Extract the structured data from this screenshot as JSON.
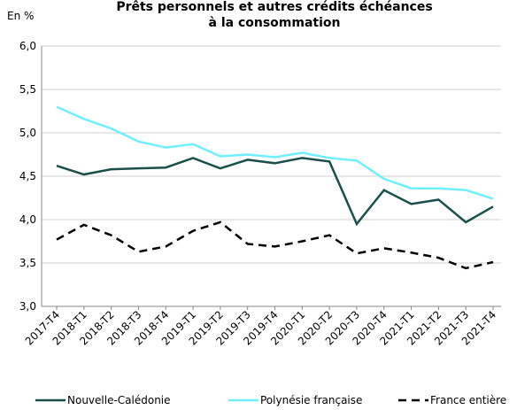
{
  "chart_data": {
    "type": "line",
    "title": [
      "Prêts personnels et autres crédits échéances",
      "à la consommation"
    ],
    "y_label": "En %",
    "categories": [
      "2017-T4",
      "2018-T1",
      "2018-T2",
      "2018-T3",
      "2018-T4",
      "2019-T1",
      "2019-T2",
      "2019-T3",
      "2019-T4",
      "2020-T1",
      "2020-T2",
      "2020-T3",
      "2020-T4",
      "2021-T1",
      "2021-T2",
      "2021-T3",
      "2021-T4"
    ],
    "series": [
      {
        "name": "Nouvelle-Calédonie",
        "color": "#1b4f4b",
        "dash": false,
        "values": [
          4.62,
          4.52,
          4.58,
          4.59,
          4.6,
          4.71,
          4.59,
          4.69,
          4.65,
          4.71,
          4.67,
          3.95,
          4.34,
          4.18,
          4.23,
          3.97,
          4.15
        ]
      },
      {
        "name": "Polynésie française",
        "color": "#6ff0ff",
        "dash": false,
        "values": [
          5.3,
          5.16,
          5.05,
          4.9,
          4.83,
          4.87,
          4.73,
          4.75,
          4.72,
          4.77,
          4.71,
          4.68,
          4.47,
          4.36,
          4.36,
          4.34,
          4.24
        ]
      },
      {
        "name": "France entière",
        "color": "#000000",
        "dash": true,
        "values": [
          3.77,
          3.94,
          3.82,
          3.63,
          3.69,
          3.87,
          3.97,
          3.72,
          3.69,
          3.75,
          3.82,
          3.61,
          3.67,
          3.62,
          3.56,
          3.44,
          3.51
        ]
      }
    ],
    "ylim": [
      3,
      6
    ],
    "yticks": [
      {
        "value": 3,
        "label": "3,0"
      },
      {
        "value": 3.5,
        "label": "3,5"
      },
      {
        "value": 4,
        "label": "4,0"
      },
      {
        "value": 4.5,
        "label": "4,5"
      },
      {
        "value": 5,
        "label": "5,0"
      },
      {
        "value": 5.5,
        "label": "5,5"
      },
      {
        "value": 6,
        "label": "6,0"
      }
    ],
    "grid": true
  }
}
